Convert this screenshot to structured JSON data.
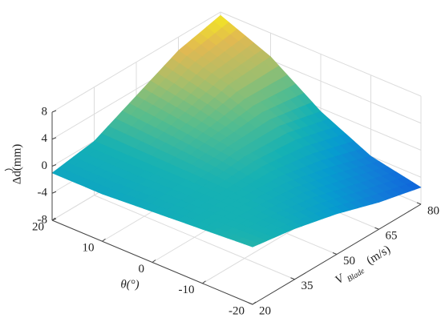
{
  "chart_data": {
    "type": "surface",
    "xlabel": "θ(°)",
    "ylabel": {
      "main": "V",
      "sub": "Blade",
      "unit": "(m/s)"
    },
    "zlabel": "Δd(mm)",
    "x": [
      -20,
      -10,
      0,
      10,
      20
    ],
    "y": [
      20,
      35,
      50,
      65,
      80
    ],
    "z": [
      [
        0.5,
        -0.5,
        -2,
        -4,
        -5.5
      ],
      [
        0,
        0,
        -0.5,
        -2,
        -4
      ],
      [
        -0.5,
        0,
        1,
        1,
        -0.5
      ],
      [
        -1,
        0,
        2,
        4,
        4.5
      ],
      [
        -1,
        0,
        3,
        6,
        7.5
      ]
    ],
    "xlim": [
      -20,
      20
    ],
    "ylim": [
      20,
      80
    ],
    "zlim": [
      -8,
      8
    ],
    "xticks": [
      -20,
      -10,
      0,
      10,
      20
    ],
    "yticks": [
      20,
      35,
      50,
      65,
      80
    ],
    "zticks": [
      -8,
      -4,
      0,
      4,
      8
    ],
    "colormap": "parula",
    "grid": true
  }
}
